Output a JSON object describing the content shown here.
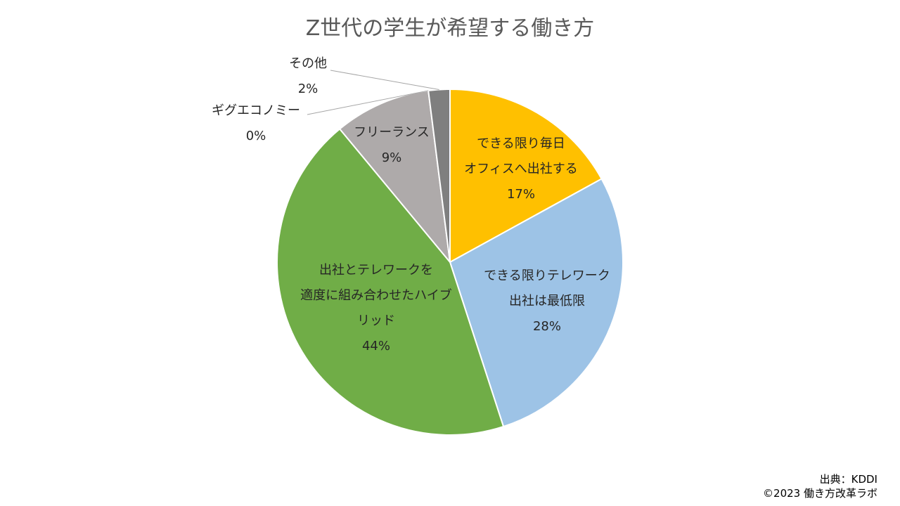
{
  "chart_data": {
    "type": "pie",
    "title": "Z世代の学生が希望する働き方",
    "start_angle_deg": 0,
    "direction": "clockwise",
    "slices": [
      {
        "label_lines": [
          "できる限り毎日",
          "オフィスへ出社する"
        ],
        "value": 17,
        "value_label": "17%",
        "color": "#FFC000"
      },
      {
        "label_lines": [
          "できる限りテレワーク",
          "出社は最低限"
        ],
        "value": 28,
        "value_label": "28%",
        "color": "#9DC3E6"
      },
      {
        "label_lines": [
          "出社とテレワークを",
          "適度に組み合わせたハイブ",
          "リッド"
        ],
        "value": 44,
        "value_label": "44%",
        "color": "#70AD47"
      },
      {
        "label_lines": [
          "フリーランス"
        ],
        "value": 9,
        "value_label": "9%",
        "color": "#AEAAAA"
      },
      {
        "label_lines": [
          "ギグエコノミー"
        ],
        "value": 0,
        "value_label": "0%",
        "color": "#C9C9C9"
      },
      {
        "label_lines": [
          "その他"
        ],
        "value": 2,
        "value_label": "2%",
        "color": "#7F7F7F"
      }
    ]
  },
  "source": {
    "line1": "出典：KDDI",
    "line2": "©2023 働き方改革ラボ"
  }
}
